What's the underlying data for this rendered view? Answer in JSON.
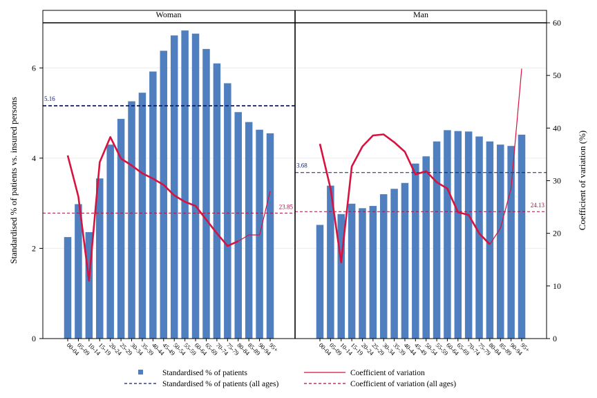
{
  "chart_data": {
    "type": "bar+line",
    "left_axis_title": "Standardised % of patients vs. insured persons",
    "right_axis_title": "Coefficient of variation (%)",
    "left_ticks": [
      "0",
      "2",
      "4",
      "6"
    ],
    "right_ticks": [
      "0",
      "10",
      "20",
      "30",
      "40",
      "50",
      "60"
    ],
    "ylim_left": [
      0,
      7
    ],
    "ylim_right": [
      0,
      60
    ],
    "categories": [
      "00-04",
      "05-09",
      "10-14",
      "15-19",
      "20-24",
      "25-29",
      "30-34",
      "35-39",
      "40-44",
      "45-49",
      "50-54",
      "55-59",
      "60-64",
      "65-69",
      "70-74",
      "75-79",
      "80-84",
      "85-89",
      "90-94",
      "95+"
    ],
    "panels": [
      {
        "title": "Woman",
        "bars": [
          2.25,
          2.98,
          2.36,
          3.55,
          4.3,
          4.87,
          5.26,
          5.45,
          5.92,
          6.38,
          6.72,
          6.83,
          6.76,
          6.42,
          6.1,
          5.66,
          5.02,
          4.8,
          4.63,
          4.55
        ],
        "cv": [
          34.8,
          27.0,
          11.0,
          33.5,
          38.3,
          34.2,
          32.9,
          31.4,
          30.4,
          29.2,
          27.2,
          26.0,
          25.2,
          22.6,
          20.0,
          17.6,
          18.5,
          19.7,
          19.7,
          28.0
        ],
        "overall_pct": 5.16,
        "overall_pct_label": "5.16",
        "overall_cv": 23.85,
        "overall_cv_label": "23.85"
      },
      {
        "title": "Man",
        "bars": [
          2.52,
          3.39,
          2.76,
          2.99,
          2.89,
          2.94,
          3.2,
          3.32,
          3.45,
          3.88,
          4.04,
          4.37,
          4.62,
          4.6,
          4.59,
          4.48,
          4.37,
          4.3,
          4.27,
          4.52
        ],
        "cv": [
          37.0,
          28.5,
          14.5,
          32.7,
          36.5,
          38.6,
          38.8,
          37.3,
          35.5,
          31.2,
          31.8,
          29.7,
          28.5,
          24.0,
          23.5,
          20.0,
          17.9,
          21.0,
          28.5,
          51.3
        ],
        "overall_pct": 3.68,
        "overall_pct_label": "3.68",
        "overall_cv": 24.13,
        "overall_cv_label": "24.13"
      }
    ],
    "colors": {
      "bar": "#4f7fbf",
      "cv": "#d6123f",
      "overall_pct": "#0a1a6e",
      "overall_cv": "#a8123c"
    },
    "legend": {
      "bars": "Standardised % of patients",
      "cv": "Coefficient of variation",
      "overall_pct": "Standardised % of patients (all ages)",
      "overall_cv": "Coefficient of variation (all ages)"
    },
    "legend_position": "bottom"
  }
}
